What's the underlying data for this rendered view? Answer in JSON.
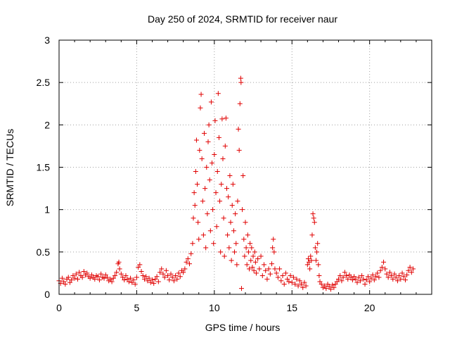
{
  "chart_data": {
    "type": "scatter",
    "title": "Day 250 of 2024, SRMTID for receiver naur",
    "xlabel": "GPS time / hours",
    "ylabel": "SRMTID / TECUs",
    "xlim": [
      0,
      24
    ],
    "ylim": [
      0,
      3
    ],
    "x_ticks": [
      0,
      5,
      10,
      15,
      20
    ],
    "x_tick_labels": [
      "0",
      "5",
      "10",
      "15",
      "20"
    ],
    "y_ticks": [
      0,
      0.5,
      1,
      1.5,
      2,
      2.5,
      3
    ],
    "y_tick_labels": [
      "0",
      "0.5",
      "1",
      "1.5",
      "2",
      "2.5",
      "3"
    ],
    "grid": true,
    "marker": "plus",
    "series_color": "#e00000",
    "series": [
      {
        "name": "SRMTID",
        "points": [
          [
            0.0,
            0.16
          ],
          [
            0.1,
            0.13
          ],
          [
            0.2,
            0.19
          ],
          [
            0.3,
            0.15
          ],
          [
            0.4,
            0.12
          ],
          [
            0.5,
            0.18
          ],
          [
            0.6,
            0.2
          ],
          [
            0.7,
            0.14
          ],
          [
            0.8,
            0.17
          ],
          [
            0.9,
            0.22
          ],
          [
            1.0,
            0.19
          ],
          [
            1.1,
            0.24
          ],
          [
            1.2,
            0.18
          ],
          [
            1.3,
            0.26
          ],
          [
            1.4,
            0.22
          ],
          [
            1.5,
            0.2
          ],
          [
            1.6,
            0.27
          ],
          [
            1.7,
            0.23
          ],
          [
            1.8,
            0.25
          ],
          [
            1.9,
            0.21
          ],
          [
            2.0,
            0.19
          ],
          [
            2.1,
            0.23
          ],
          [
            2.2,
            0.2
          ],
          [
            2.3,
            0.18
          ],
          [
            2.4,
            0.22
          ],
          [
            2.5,
            0.21
          ],
          [
            2.6,
            0.17
          ],
          [
            2.7,
            0.24
          ],
          [
            2.8,
            0.2
          ],
          [
            2.9,
            0.19
          ],
          [
            3.0,
            0.23
          ],
          [
            3.1,
            0.2
          ],
          [
            3.2,
            0.16
          ],
          [
            3.3,
            0.18
          ],
          [
            3.4,
            0.15
          ],
          [
            3.5,
            0.19
          ],
          [
            3.6,
            0.22
          ],
          [
            3.7,
            0.26
          ],
          [
            3.8,
            0.36
          ],
          [
            3.85,
            0.38
          ],
          [
            3.9,
            0.3
          ],
          [
            4.0,
            0.24
          ],
          [
            4.1,
            0.2
          ],
          [
            4.2,
            0.17
          ],
          [
            4.3,
            0.22
          ],
          [
            4.4,
            0.18
          ],
          [
            4.5,
            0.15
          ],
          [
            4.6,
            0.19
          ],
          [
            4.7,
            0.14
          ],
          [
            4.8,
            0.17
          ],
          [
            4.9,
            0.12
          ],
          [
            5.0,
            0.2
          ],
          [
            5.1,
            0.32
          ],
          [
            5.2,
            0.35
          ],
          [
            5.3,
            0.27
          ],
          [
            5.4,
            0.22
          ],
          [
            5.5,
            0.18
          ],
          [
            5.6,
            0.21
          ],
          [
            5.7,
            0.16
          ],
          [
            5.8,
            0.19
          ],
          [
            5.9,
            0.14
          ],
          [
            6.0,
            0.17
          ],
          [
            6.1,
            0.13
          ],
          [
            6.2,
            0.18
          ],
          [
            6.3,
            0.21
          ],
          [
            6.4,
            0.15
          ],
          [
            6.5,
            0.26
          ],
          [
            6.6,
            0.3
          ],
          [
            6.7,
            0.24
          ],
          [
            6.8,
            0.2
          ],
          [
            6.9,
            0.28
          ],
          [
            7.0,
            0.22
          ],
          [
            7.1,
            0.17
          ],
          [
            7.2,
            0.24
          ],
          [
            7.3,
            0.2
          ],
          [
            7.4,
            0.16
          ],
          [
            7.5,
            0.22
          ],
          [
            7.6,
            0.18
          ],
          [
            7.7,
            0.25
          ],
          [
            7.8,
            0.21
          ],
          [
            7.9,
            0.28
          ],
          [
            8.0,
            0.26
          ],
          [
            8.1,
            0.3
          ],
          [
            8.2,
            0.38
          ],
          [
            8.3,
            0.42
          ],
          [
            8.4,
            0.36
          ],
          [
            8.5,
            0.48
          ],
          [
            8.6,
            0.6
          ],
          [
            8.65,
            0.9
          ],
          [
            8.7,
            1.2
          ],
          [
            8.75,
            1.05
          ],
          [
            8.8,
            1.45
          ],
          [
            8.85,
            1.82
          ],
          [
            8.9,
            1.3
          ],
          [
            8.95,
            0.85
          ],
          [
            9.0,
            0.65
          ],
          [
            9.05,
            1.7
          ],
          [
            9.1,
            2.2
          ],
          [
            9.15,
            2.36
          ],
          [
            9.2,
            1.6
          ],
          [
            9.25,
            1.1
          ],
          [
            9.3,
            0.7
          ],
          [
            9.35,
            1.9
          ],
          [
            9.4,
            1.25
          ],
          [
            9.45,
            0.55
          ],
          [
            9.5,
            1.5
          ],
          [
            9.55,
            0.95
          ],
          [
            9.6,
            1.8
          ],
          [
            9.65,
            2.0
          ],
          [
            9.7,
            1.35
          ],
          [
            9.75,
            0.75
          ],
          [
            9.8,
            2.27
          ],
          [
            9.85,
            1.55
          ],
          [
            9.9,
            1.0
          ],
          [
            9.95,
            0.6
          ],
          [
            10.0,
            1.65
          ],
          [
            10.05,
            2.05
          ],
          [
            10.1,
            1.2
          ],
          [
            10.15,
            0.8
          ],
          [
            10.2,
            1.45
          ],
          [
            10.25,
            2.37
          ],
          [
            10.3,
            1.85
          ],
          [
            10.35,
            1.1
          ],
          [
            10.4,
            0.5
          ],
          [
            10.45,
            1.3
          ],
          [
            10.5,
            2.07
          ],
          [
            10.55,
            1.6
          ],
          [
            10.6,
            0.9
          ],
          [
            10.65,
            0.45
          ],
          [
            10.7,
            1.75
          ],
          [
            10.75,
            2.08
          ],
          [
            10.8,
            1.25
          ],
          [
            10.85,
            0.7
          ],
          [
            10.9,
            1.15
          ],
          [
            10.95,
            0.55
          ],
          [
            11.0,
            1.4
          ],
          [
            11.05,
            0.85
          ],
          [
            11.1,
            0.4
          ],
          [
            11.15,
            1.05
          ],
          [
            11.2,
            1.3
          ],
          [
            11.25,
            0.75
          ],
          [
            11.3,
            0.5
          ],
          [
            11.35,
            0.95
          ],
          [
            11.4,
            0.6
          ],
          [
            11.45,
            0.35
          ],
          [
            11.5,
            1.1
          ],
          [
            11.55,
            1.95
          ],
          [
            11.6,
            1.7
          ],
          [
            11.65,
            2.25
          ],
          [
            11.7,
            2.55
          ],
          [
            11.72,
            2.5
          ],
          [
            11.75,
            0.07
          ],
          [
            11.8,
            1.0
          ],
          [
            11.85,
            1.4
          ],
          [
            11.9,
            0.65
          ],
          [
            11.95,
            0.45
          ],
          [
            12.0,
            0.85
          ],
          [
            12.05,
            0.55
          ],
          [
            12.1,
            0.35
          ],
          [
            12.15,
            0.7
          ],
          [
            12.2,
            0.5
          ],
          [
            12.25,
            0.3
          ],
          [
            12.3,
            0.6
          ],
          [
            12.35,
            0.4
          ],
          [
            12.4,
            0.55
          ],
          [
            12.45,
            0.32
          ],
          [
            12.5,
            0.45
          ],
          [
            12.55,
            0.28
          ],
          [
            12.6,
            0.5
          ],
          [
            12.65,
            0.38
          ],
          [
            12.7,
            0.25
          ],
          [
            12.8,
            0.42
          ],
          [
            12.9,
            0.3
          ],
          [
            13.0,
            0.45
          ],
          [
            13.1,
            0.22
          ],
          [
            13.2,
            0.35
          ],
          [
            13.3,
            0.28
          ],
          [
            13.4,
            0.18
          ],
          [
            13.5,
            0.3
          ],
          [
            13.6,
            0.24
          ],
          [
            13.7,
            0.36
          ],
          [
            13.75,
            0.55
          ],
          [
            13.8,
            0.65
          ],
          [
            13.85,
            0.5
          ],
          [
            13.9,
            0.3
          ],
          [
            14.0,
            0.25
          ],
          [
            14.1,
            0.2
          ],
          [
            14.2,
            0.3
          ],
          [
            14.3,
            0.16
          ],
          [
            14.4,
            0.22
          ],
          [
            14.5,
            0.12
          ],
          [
            14.6,
            0.25
          ],
          [
            14.7,
            0.18
          ],
          [
            14.8,
            0.15
          ],
          [
            14.9,
            0.22
          ],
          [
            15.0,
            0.14
          ],
          [
            15.1,
            0.2
          ],
          [
            15.2,
            0.12
          ],
          [
            15.3,
            0.18
          ],
          [
            15.4,
            0.1
          ],
          [
            15.5,
            0.16
          ],
          [
            15.6,
            0.12
          ],
          [
            15.7,
            0.08
          ],
          [
            15.8,
            0.14
          ],
          [
            15.9,
            0.1
          ],
          [
            16.0,
            0.35
          ],
          [
            16.05,
            0.42
          ],
          [
            16.1,
            0.38
          ],
          [
            16.15,
            0.3
          ],
          [
            16.2,
            0.45
          ],
          [
            16.25,
            0.4
          ],
          [
            16.3,
            0.7
          ],
          [
            16.35,
            0.95
          ],
          [
            16.4,
            0.9
          ],
          [
            16.45,
            0.85
          ],
          [
            16.5,
            0.55
          ],
          [
            16.55,
            0.4
          ],
          [
            16.6,
            0.5
          ],
          [
            16.65,
            0.6
          ],
          [
            16.7,
            0.35
          ],
          [
            16.75,
            0.22
          ],
          [
            16.8,
            0.15
          ],
          [
            16.9,
            0.12
          ],
          [
            17.0,
            0.08
          ],
          [
            17.1,
            0.1
          ],
          [
            17.2,
            0.07
          ],
          [
            17.3,
            0.12
          ],
          [
            17.4,
            0.09
          ],
          [
            17.5,
            0.06
          ],
          [
            17.6,
            0.11
          ],
          [
            17.7,
            0.08
          ],
          [
            17.8,
            0.12
          ],
          [
            17.9,
            0.15
          ],
          [
            18.0,
            0.18
          ],
          [
            18.1,
            0.22
          ],
          [
            18.2,
            0.16
          ],
          [
            18.3,
            0.2
          ],
          [
            18.4,
            0.26
          ],
          [
            18.5,
            0.22
          ],
          [
            18.6,
            0.18
          ],
          [
            18.7,
            0.23
          ],
          [
            18.8,
            0.2
          ],
          [
            18.9,
            0.17
          ],
          [
            19.0,
            0.21
          ],
          [
            19.1,
            0.18
          ],
          [
            19.2,
            0.14
          ],
          [
            19.3,
            0.2
          ],
          [
            19.4,
            0.16
          ],
          [
            19.5,
            0.22
          ],
          [
            19.6,
            0.18
          ],
          [
            19.7,
            0.12
          ],
          [
            19.8,
            0.17
          ],
          [
            19.9,
            0.21
          ],
          [
            20.0,
            0.15
          ],
          [
            20.1,
            0.19
          ],
          [
            20.2,
            0.23
          ],
          [
            20.3,
            0.17
          ],
          [
            20.4,
            0.21
          ],
          [
            20.5,
            0.25
          ],
          [
            20.6,
            0.2
          ],
          [
            20.7,
            0.28
          ],
          [
            20.8,
            0.32
          ],
          [
            20.9,
            0.38
          ],
          [
            21.0,
            0.3
          ],
          [
            21.1,
            0.24
          ],
          [
            21.2,
            0.2
          ],
          [
            21.3,
            0.26
          ],
          [
            21.4,
            0.22
          ],
          [
            21.5,
            0.18
          ],
          [
            21.6,
            0.24
          ],
          [
            21.7,
            0.2
          ],
          [
            21.8,
            0.16
          ],
          [
            21.9,
            0.22
          ],
          [
            22.0,
            0.18
          ],
          [
            22.1,
            0.25
          ],
          [
            22.2,
            0.21
          ],
          [
            22.3,
            0.17
          ],
          [
            22.4,
            0.23
          ],
          [
            22.5,
            0.28
          ],
          [
            22.6,
            0.32
          ],
          [
            22.7,
            0.26
          ],
          [
            22.8,
            0.3
          ]
        ]
      }
    ]
  }
}
